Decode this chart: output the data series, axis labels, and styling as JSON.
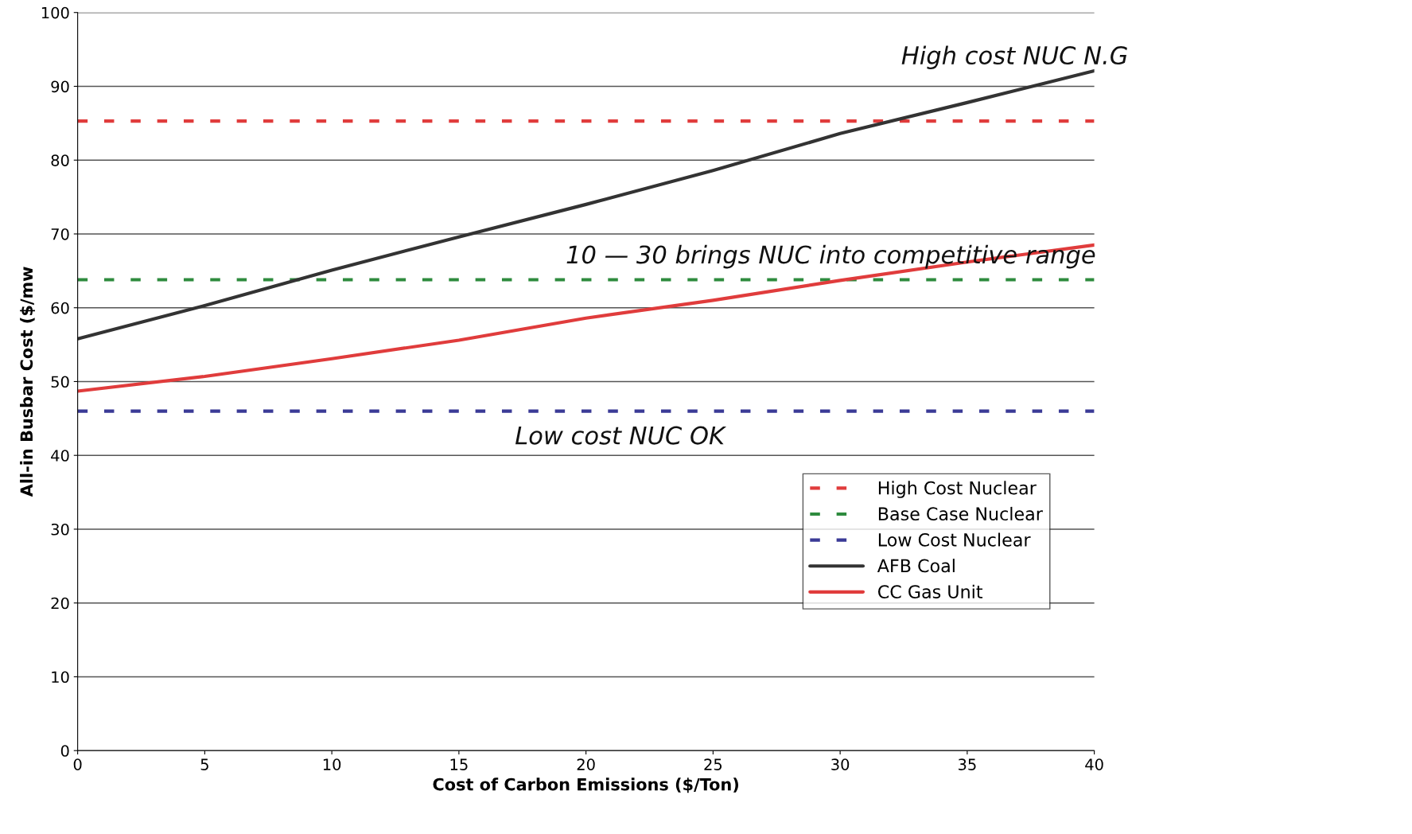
{
  "chart_data": {
    "type": "line",
    "xlabel": "Cost of Carbon Emissions ($/Ton)",
    "ylabel": "All-in Busbar Cost ($/mw",
    "xlim": [
      0,
      40
    ],
    "xticks": [
      0,
      5,
      10,
      15,
      20,
      25,
      30,
      35,
      40
    ],
    "ylim": [
      0,
      100
    ],
    "yticks": [
      0,
      10,
      20,
      30,
      40,
      50,
      60,
      70,
      80,
      90,
      100
    ],
    "grid": "y",
    "legend": "lower right",
    "marker": "none",
    "series": [
      {
        "name": "High Cost Nuclear",
        "color": "#e03c3c",
        "line_style": "dashed",
        "x": [
          0,
          40
        ],
        "values": [
          85.3,
          85.3
        ]
      },
      {
        "name": "Base Case Nuclear",
        "color": "#2e8b3e",
        "line_style": "dashed",
        "x": [
          0,
          40
        ],
        "values": [
          63.8,
          63.8
        ]
      },
      {
        "name": "Low Cost Nuclear",
        "color": "#3a3a96",
        "line_style": "dashed",
        "x": [
          0,
          40
        ],
        "values": [
          46,
          46
        ]
      },
      {
        "name": "AFB Coal",
        "color": "#333333",
        "line_style": "solid",
        "x": [
          0,
          5,
          10,
          15,
          20,
          25,
          30,
          35,
          40
        ],
        "values": [
          55.8,
          60.3,
          65.1,
          69.6,
          74,
          78.6,
          83.6,
          87.8,
          92.1
        ]
      },
      {
        "name": "CC Gas Unit",
        "color": "#e03c3c",
        "line_style": "solid",
        "x": [
          0,
          5,
          10,
          15,
          20,
          25,
          30,
          35,
          40
        ],
        "values": [
          48.7,
          50.7,
          53.1,
          55.6,
          58.6,
          61,
          63.7,
          66.2,
          68.5
        ]
      }
    ],
    "annotations": [
      "High cost NUC N.G",
      "10 — 30 brings NUC into competitive range",
      "Low cost NUC OK"
    ]
  }
}
